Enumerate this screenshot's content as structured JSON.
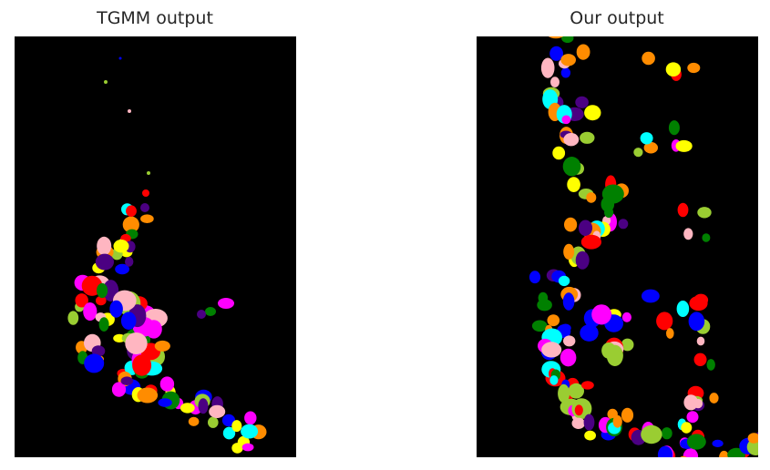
{
  "panels": {
    "left": {
      "title": "TGMM output"
    },
    "right": {
      "title": "Our output"
    }
  },
  "colors": {
    "background": "#000000",
    "palette": [
      "#ff0000",
      "#ff00ff",
      "#0000ff",
      "#ffff00",
      "#ff8c00",
      "#00ffff",
      "#ffb6c1",
      "#008000",
      "#4b0082",
      "#9acd32"
    ]
  }
}
